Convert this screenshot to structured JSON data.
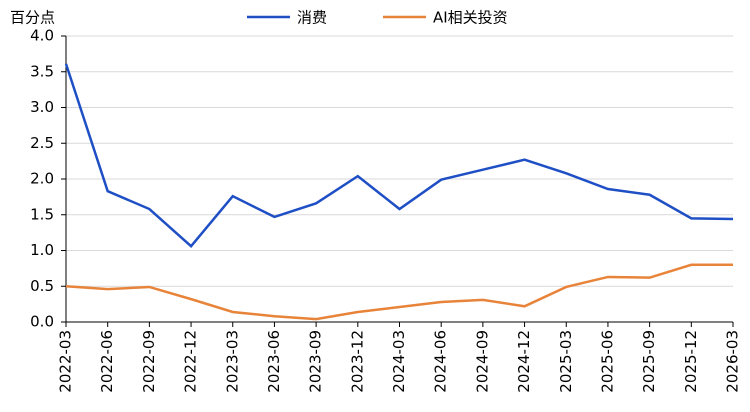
{
  "chart_data": {
    "type": "line",
    "y_unit_label": "百分点",
    "x": [
      "2022-03",
      "2022-06",
      "2022-09",
      "2022-12",
      "2023-03",
      "2023-06",
      "2023-09",
      "2023-12",
      "2024-03",
      "2024-06",
      "2024-09",
      "2024-12",
      "2025-03",
      "2025-06",
      "2025-09",
      "2025-12",
      "2026-03"
    ],
    "series": [
      {
        "name": "消费",
        "color": "#1f4fc4",
        "values": [
          3.61,
          1.83,
          1.58,
          1.06,
          1.76,
          1.47,
          1.66,
          2.04,
          1.58,
          1.99,
          2.13,
          2.27,
          2.08,
          1.86,
          1.78,
          1.45,
          1.44
        ]
      },
      {
        "name": "AI相关投资",
        "color": "#e8843a",
        "values": [
          0.5,
          0.46,
          0.49,
          0.32,
          0.14,
          0.08,
          0.04,
          0.14,
          0.21,
          0.28,
          0.31,
          0.22,
          0.49,
          0.63,
          0.62,
          0.8,
          0.8
        ]
      }
    ],
    "ylim": [
      0,
      4
    ],
    "yticks": [
      {
        "value": 0,
        "label": "0.0"
      },
      {
        "value": 0.5,
        "label": "0.5"
      },
      {
        "value": 1,
        "label": "1.0"
      },
      {
        "value": 1.5,
        "label": "1.5"
      },
      {
        "value": 2,
        "label": "2.0"
      },
      {
        "value": 2.5,
        "label": "2.5"
      },
      {
        "value": 3,
        "label": "3.0"
      },
      {
        "value": 3.5,
        "label": "3.5"
      },
      {
        "value": 4,
        "label": "4.0"
      }
    ],
    "grid": true,
    "legend": "top"
  }
}
